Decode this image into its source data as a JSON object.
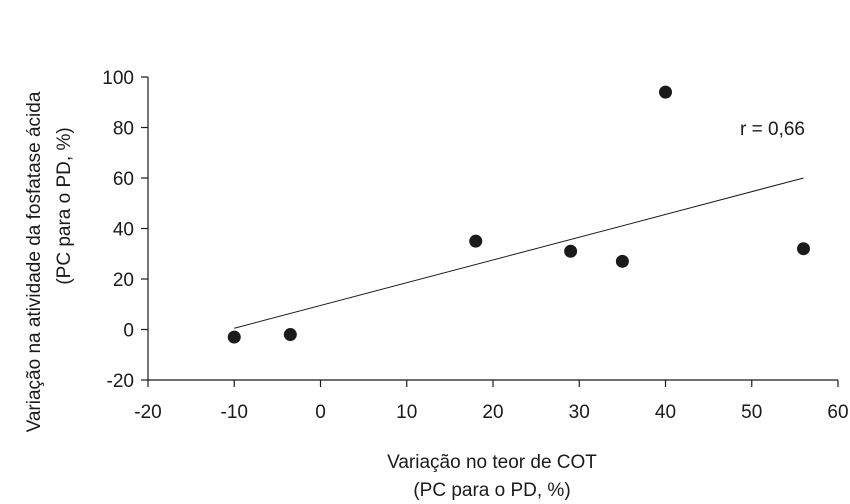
{
  "chart_data": {
    "type": "scatter",
    "title": "",
    "xlabel": [
      "Variação no teor de COT",
      "(PC para o PD, %)"
    ],
    "ylabel": [
      "Variação na atividade da fosfatase ácida",
      "(PC para o PD, %)"
    ],
    "xlim": [
      -20,
      60
    ],
    "ylim": [
      -20,
      100
    ],
    "xticks": [
      -20,
      -10,
      0,
      10,
      20,
      30,
      40,
      50,
      60
    ],
    "yticks": [
      -20,
      0,
      20,
      40,
      60,
      80,
      100
    ],
    "grid": false,
    "points": [
      {
        "x": -10,
        "y": -3
      },
      {
        "x": -3.5,
        "y": -2
      },
      {
        "x": 18,
        "y": 35
      },
      {
        "x": 29,
        "y": 31
      },
      {
        "x": 35,
        "y": 27
      },
      {
        "x": 40,
        "y": 94
      },
      {
        "x": 56,
        "y": 32
      }
    ],
    "trendline": {
      "x": [
        -10,
        56
      ],
      "y": [
        0.5,
        60
      ]
    },
    "annotation": "r = 0,66",
    "colors": {
      "marker": "#1a1a1a",
      "line": "#1a1a1a",
      "axis": "#1a1a1a"
    }
  }
}
